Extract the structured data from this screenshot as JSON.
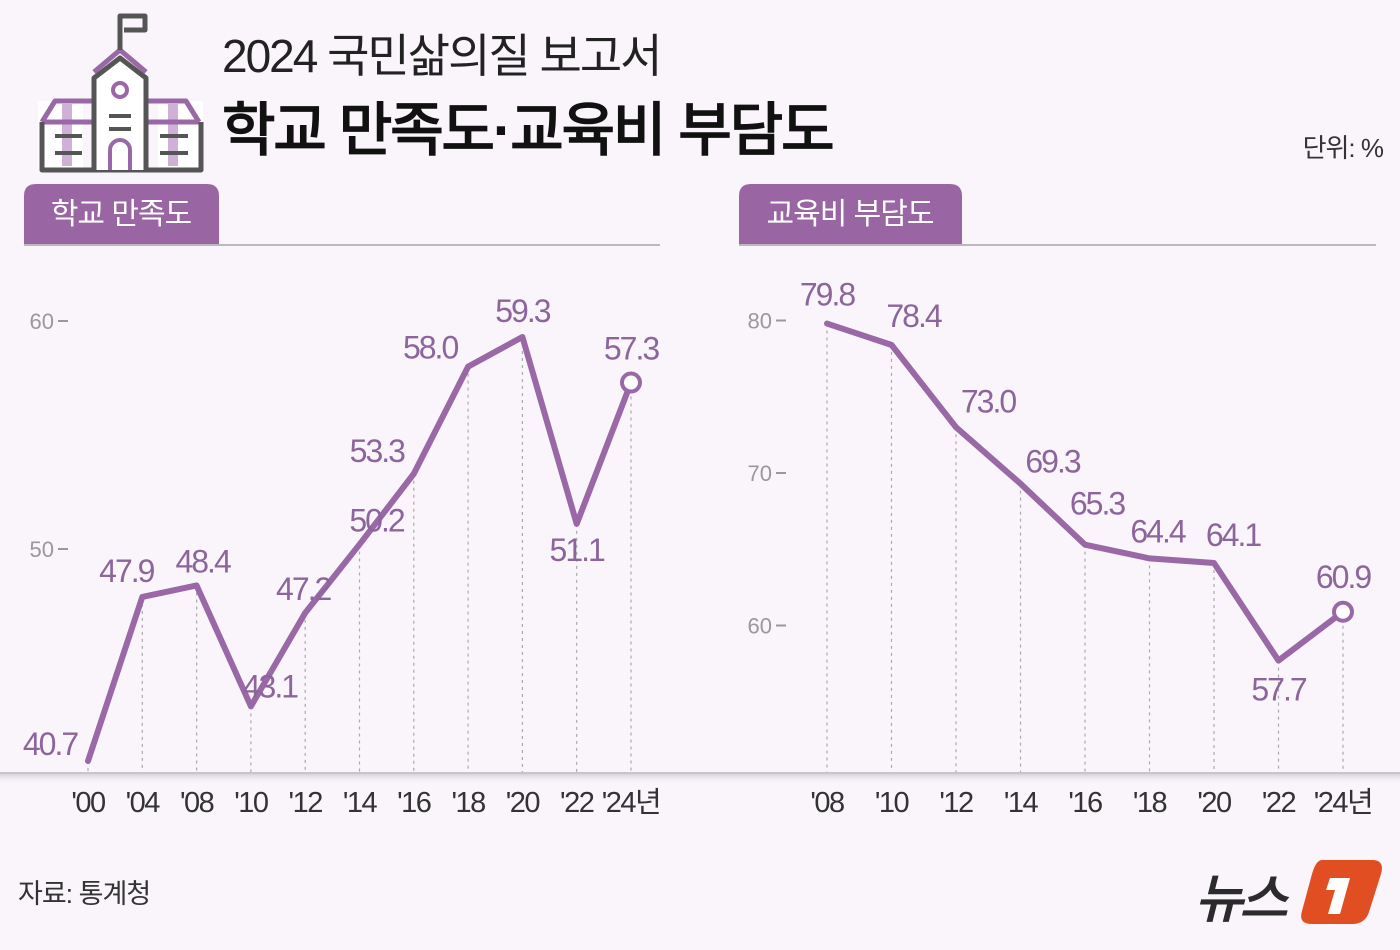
{
  "header": {
    "subtitle": "2024 국민삶의질 보고서",
    "title": "학교 만족도·교육비 부담도",
    "unit": "단위: %"
  },
  "footer": {
    "source": "자료: 통계청",
    "logo_text": "뉴스1"
  },
  "colors": {
    "line": "#9a68a6",
    "tab": "#9a65a3",
    "label": "#8c659c",
    "background": "#f9f5fa"
  },
  "chart_data": [
    {
      "type": "line",
      "title": "학교 만족도",
      "categories": [
        "'00",
        "'04",
        "'08",
        "'10",
        "'12",
        "'14",
        "'16",
        "'18",
        "'20",
        "'22",
        "'24년"
      ],
      "values": [
        40.7,
        47.9,
        48.4,
        43.1,
        47.2,
        50.2,
        53.3,
        58.0,
        59.3,
        51.1,
        57.3
      ],
      "value_labels": [
        "40.7",
        "47.9",
        "48.4",
        "43.1",
        "47.2",
        "50.2",
        "53.3",
        "58.0",
        "59.3",
        "51.1",
        "57.3"
      ],
      "yticks": [
        50,
        60
      ],
      "ytick_labels": [
        "50",
        "60"
      ],
      "grid": false
    },
    {
      "type": "line",
      "title": "교육비 부담도",
      "categories": [
        "'08",
        "'10",
        "'12",
        "'14",
        "'16",
        "'18",
        "'20",
        "'22",
        "'24년"
      ],
      "values": [
        79.8,
        78.4,
        73.0,
        69.3,
        65.3,
        64.4,
        64.1,
        57.7,
        60.9
      ],
      "value_labels": [
        "79.8",
        "78.4",
        "73.0",
        "69.3",
        "65.3",
        "64.4",
        "64.1",
        "57.7",
        "60.9"
      ],
      "yticks": [
        60,
        70,
        80
      ],
      "ytick_labels": [
        "60",
        "70",
        "80"
      ],
      "grid": false
    }
  ]
}
